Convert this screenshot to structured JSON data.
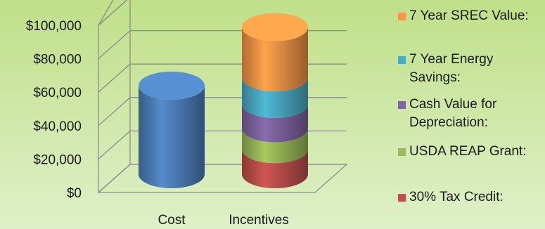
{
  "chart_data": {
    "type": "bar",
    "style": "3d-cylinder-stacked",
    "categories": [
      "Cost",
      "Incentives"
    ],
    "series": [
      {
        "name": "30% Tax Credit:",
        "color": "#c0504d",
        "values": [
          0,
          15000
        ]
      },
      {
        "name": "USDA REAP Grant:",
        "color": "#9bbb59",
        "values": [
          0,
          12500
        ]
      },
      {
        "name": "Cash Value for Depreciation:",
        "color": "#8064a2",
        "values": [
          0,
          14500
        ]
      },
      {
        "name": "7 Year Energy Savings:",
        "color": "#4bacc6",
        "values": [
          0,
          16000
        ]
      },
      {
        "name": "7 Year SREC Value:",
        "color": "#f79646",
        "values": [
          0,
          30000
        ]
      }
    ],
    "cost_value": 53000,
    "cost_color": "#4f81bd",
    "yticks": [
      "$0",
      "$20,000",
      "$40,000",
      "$60,000",
      "$80,000",
      "$100,000"
    ],
    "ylim": [
      0,
      100000
    ],
    "grid": true,
    "legend_position": "right",
    "background_colors": [
      "#bfe089",
      "#dff0c8"
    ]
  }
}
